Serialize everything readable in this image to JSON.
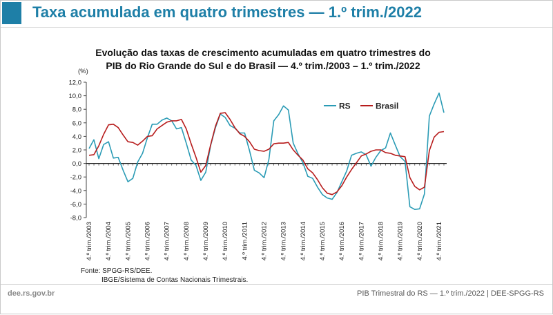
{
  "page": {
    "title": "Taxa acumulada em quatro trimestres — 1.º trim./2022",
    "site": "dee.rs.gov.br",
    "footer": "PIB Trimestral do RS — 1.º trim./2022  |  DEE-SPGG-RS",
    "source_line1": "Fonte: SPGG-RS/DEE.",
    "source_line2": "IBGE/Sistema de Contas Nacionais Trimestrais."
  },
  "colors": {
    "accent": "#1e7fa7",
    "rs": "#2a9bb5",
    "brasil": "#b71c1c"
  },
  "chart_data": {
    "type": "line",
    "title_line1": "Evolução das taxas de crescimento acumuladas em quatro trimestres do",
    "title_line2": "PIB do Rio Grande do Sul e do Brasil — 4.º trim./2003 – 1.º trim./2022",
    "ylabel": "(%)",
    "ylim": [
      -8,
      12
    ],
    "yticks": [
      "-8,0",
      "-6,0",
      "-4,0",
      "-2,0",
      "0,0",
      "2,0",
      "4,0",
      "6,0",
      "8,0",
      "10,0",
      "12,0"
    ],
    "legend_position": "top-right",
    "grid": false,
    "categories": [
      "4.º trim./2003",
      "1.º trim./2004",
      "2.º trim./2004",
      "3.º trim./2004",
      "4.º trim./2004",
      "1.º trim./2005",
      "2.º trim./2005",
      "3.º trim./2005",
      "4.º trim./2005",
      "1.º trim./2006",
      "2.º trim./2006",
      "3.º trim./2006",
      "4.º trim./2006",
      "1.º trim./2007",
      "2.º trim./2007",
      "3.º trim./2007",
      "4.º trim./2007",
      "1.º trim./2008",
      "2.º trim./2008",
      "3.º trim./2008",
      "4.º trim./2008",
      "1.º trim./2009",
      "2.º trim./2009",
      "3.º trim./2009",
      "4.º trim./2009",
      "1.º trim./2010",
      "2.º trim./2010",
      "3.º trim./2010",
      "4.º trim./2010",
      "1.º trim./2011",
      "2.º trim./2011",
      "3.º trim./2011",
      "4.º trim./2011",
      "1.º trim./2012",
      "2.º trim./2012",
      "3.º trim./2012",
      "4.º trim./2012",
      "1.º trim./2013",
      "2.º trim./2013",
      "3.º trim./2013",
      "4.º trim./2013",
      "1.º trim./2014",
      "2.º trim./2014",
      "3.º trim./2014",
      "4.º trim./2014",
      "1.º trim./2015",
      "2.º trim./2015",
      "3.º trim./2015",
      "4.º trim./2015",
      "1.º trim./2016",
      "2.º trim./2016",
      "3.º trim./2016",
      "4.º trim./2016",
      "1.º trim./2017",
      "2.º trim./2017",
      "3.º trim./2017",
      "4.º trim./2017",
      "1.º trim./2018",
      "2.º trim./2018",
      "3.º trim./2018",
      "4.º trim./2018",
      "1.º trim./2019",
      "2.º trim./2019",
      "3.º trim./2019",
      "4.º trim./2019",
      "1.º trim./2020",
      "2.º trim./2020",
      "3.º trim./2020",
      "4.º trim./2020",
      "1.º trim./2021",
      "2.º trim./2021",
      "3.º trim./2021",
      "4.º trim./2021",
      "1.º trim./2022"
    ],
    "tick_labels": [
      "4.º trim./2003",
      "4.º trim./2004",
      "4.º trim./2005",
      "4.º trim./2006",
      "4.º trim./2007",
      "4.º trim./2008",
      "4.º trim./2009",
      "4.º trim./2010",
      "4.º trim./2011",
      "4.º trim./2012",
      "4.º trim./2013",
      "4.º trim./2014",
      "4.º trim./2015",
      "4.º trim./2016",
      "4.º trim./2017",
      "4.º trim./2018",
      "4.º trim./2019",
      "4.º trim./2020",
      "4.º trim./2021"
    ],
    "series": [
      {
        "name": "RS",
        "values": [
          2.2,
          3.5,
          0.7,
          2.8,
          3.2,
          0.8,
          0.9,
          -1.0,
          -2.7,
          -2.2,
          0.2,
          1.5,
          3.8,
          5.8,
          5.8,
          6.4,
          6.7,
          6.3,
          5.1,
          5.3,
          3.0,
          0.5,
          -0.3,
          -2.5,
          -1.3,
          2.6,
          5.3,
          7.3,
          6.8,
          5.6,
          5.2,
          4.5,
          4.5,
          1.9,
          -1.0,
          -1.4,
          -2.1,
          0.6,
          6.3,
          7.2,
          8.5,
          7.9,
          3.0,
          1.4,
          0.1,
          -1.9,
          -2.2,
          -3.5,
          -4.6,
          -5.1,
          -5.3,
          -4.3,
          -2.7,
          -1.1,
          1.2,
          1.5,
          1.7,
          1.3,
          -0.4,
          0.9,
          1.9,
          2.3,
          4.5,
          2.7,
          1.0,
          0.3,
          -6.4,
          -6.8,
          -6.7,
          -4.5,
          7.0,
          8.8,
          10.4,
          7.5
        ]
      },
      {
        "name": "Brasil",
        "values": [
          1.2,
          1.3,
          2.6,
          4.3,
          5.7,
          5.8,
          5.3,
          4.2,
          3.2,
          3.1,
          2.7,
          3.3,
          4.0,
          4.1,
          5.1,
          5.6,
          6.1,
          6.3,
          6.3,
          6.5,
          5.1,
          2.9,
          0.9,
          -1.3,
          -0.3,
          2.7,
          5.5,
          7.4,
          7.5,
          6.5,
          5.3,
          4.4,
          4.0,
          3.2,
          2.1,
          1.9,
          1.8,
          2.1,
          2.9,
          3.0,
          3.0,
          3.1,
          2.0,
          1.2,
          0.5,
          -0.8,
          -1.4,
          -2.4,
          -3.6,
          -4.4,
          -4.6,
          -4.2,
          -3.3,
          -2.0,
          -0.9,
          0.1,
          1.1,
          1.4,
          1.8,
          2.0,
          2.0,
          1.6,
          1.5,
          1.2,
          1.1,
          1.0,
          -2.1,
          -3.4,
          -3.9,
          -3.5,
          1.9,
          3.9,
          4.6,
          4.7
        ]
      }
    ]
  }
}
